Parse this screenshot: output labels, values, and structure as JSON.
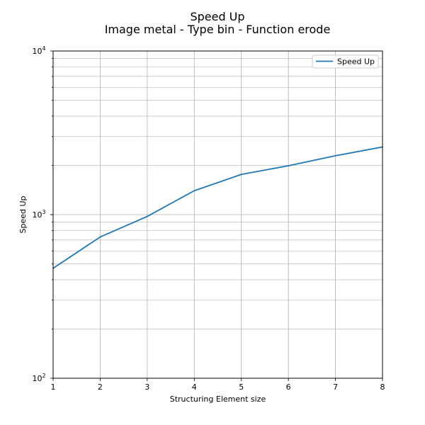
{
  "chart_data": {
    "type": "line",
    "title": "Speed Up",
    "subtitle": "Image metal - Type bin - Function erode",
    "xlabel": "Structuring Element size",
    "ylabel": "Speed Up",
    "x": [
      1,
      2,
      3,
      4,
      5,
      6,
      7,
      8
    ],
    "series": [
      {
        "name": "Speed Up",
        "values": [
          470,
          730,
          975,
          1400,
          1760,
          1990,
          2290,
          2590
        ],
        "color": "#1f77b4"
      }
    ],
    "xlim": [
      1,
      8
    ],
    "ylim": [
      100,
      10000
    ],
    "yscale": "log",
    "x_ticks": [
      "1",
      "2",
      "3",
      "4",
      "5",
      "6",
      "7",
      "8"
    ],
    "y_ticks": [
      {
        "base": "10",
        "exp": "2"
      },
      {
        "base": "10",
        "exp": "3"
      },
      {
        "base": "10",
        "exp": "4"
      }
    ],
    "grid": true,
    "legend": "top-right"
  }
}
